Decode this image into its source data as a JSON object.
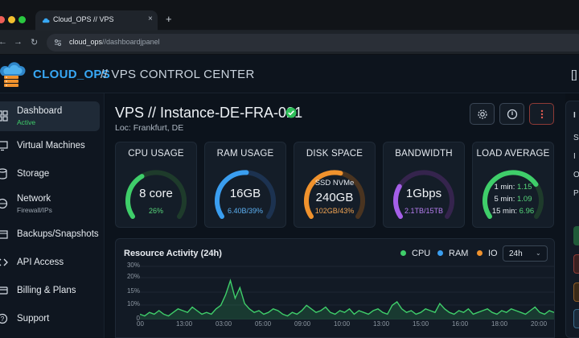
{
  "browser": {
    "tab_title": "Cloud_OPS // VPS",
    "tab_close": "×",
    "new_tab": "+",
    "url_host": "cloud_ops",
    "url_path": "//dashboardjpanel"
  },
  "header": {
    "brand": "CLOUD_OPS",
    "subtitle": "// VPS CONTROL CENTER",
    "right_glyph": "[]"
  },
  "sidebar": {
    "items": [
      {
        "label": "Dashboard",
        "sub": "Active",
        "icon": "dashboard-icon",
        "active": true
      },
      {
        "label": "Virtual Machines",
        "icon": "monitor-icon"
      },
      {
        "label": "Storage",
        "icon": "storage-icon"
      },
      {
        "label": "Network",
        "sub": "Firewall/IPs",
        "icon": "network-icon"
      },
      {
        "label": "Backups/Snapshots",
        "icon": "backup-icon"
      },
      {
        "label": "API Access",
        "icon": "code-icon"
      },
      {
        "label": "Billing & Plans",
        "icon": "billing-icon"
      },
      {
        "label": "Support",
        "icon": "support-icon"
      }
    ]
  },
  "instance": {
    "title": "VPS // Instance-DE-FRA-021",
    "location": "Loc: Frankfurt, DE",
    "status": "online"
  },
  "metrics": {
    "cpu": {
      "title": "CPU USAGE",
      "main": "8 core",
      "sub": "26%",
      "percent": 26
    },
    "ram": {
      "title": "RAM USAGE",
      "main": "16GB",
      "sub": "6.40B/39%",
      "percent": 39
    },
    "disk": {
      "title": "DISK SPACE",
      "top": "SSD NVMe",
      "main": "240GB",
      "sub": "102GB/43%",
      "percent": 43
    },
    "bandwidth": {
      "title": "BANDWIDTH",
      "main": "1Gbps",
      "sub": "2.1TB/15TB",
      "percent": 14
    },
    "load": {
      "title": "LOAD AVERAGE",
      "rows": [
        {
          "label": "1 min:",
          "value": "1.15"
        },
        {
          "label": "5 min:",
          "value": "1.09"
        },
        {
          "label": "15 min:",
          "value": "6.96"
        }
      ],
      "percent": 60
    }
  },
  "activity": {
    "title": "Resource Activity (24h)",
    "legend": [
      {
        "name": "CPU",
        "color": "#3fce6a"
      },
      {
        "name": "RAM",
        "color": "#3a9ef0"
      },
      {
        "name": "IO",
        "color": "#f0922d"
      }
    ],
    "range": "24h",
    "range_caret": "⌄"
  },
  "chart_data": {
    "type": "line",
    "title": "Resource Activity (24h)",
    "x_ticks": [
      "00",
      "13:00",
      "03:00",
      "05:00",
      "09:00",
      "10:00",
      "13:00",
      "15:00",
      "16:00",
      "18:00",
      "20:00"
    ],
    "y_ticks": [
      "30%",
      "20%",
      "15%",
      "10%",
      "0"
    ],
    "ylim": [
      0,
      30
    ],
    "series": [
      {
        "name": "CPU",
        "values": [
          3,
          2,
          4,
          3,
          5,
          3,
          2,
          4,
          6,
          5,
          4,
          7,
          5,
          3,
          4,
          3,
          6,
          8,
          14,
          22,
          12,
          18,
          9,
          6,
          4,
          5,
          3,
          4,
          6,
          5,
          3,
          2,
          4,
          3,
          5,
          8,
          6,
          4,
          5,
          7,
          4,
          3,
          5,
          4,
          6,
          3,
          5,
          4,
          3,
          5,
          6,
          4,
          3,
          8,
          10,
          6,
          4,
          5,
          3,
          4,
          6,
          5,
          4,
          9,
          6,
          4,
          3,
          5,
          4,
          6,
          3,
          4,
          5,
          6,
          4,
          3,
          5,
          4,
          6,
          5,
          4,
          3,
          5,
          7,
          4,
          3,
          5,
          4
        ]
      }
    ]
  },
  "below": "1560"
}
